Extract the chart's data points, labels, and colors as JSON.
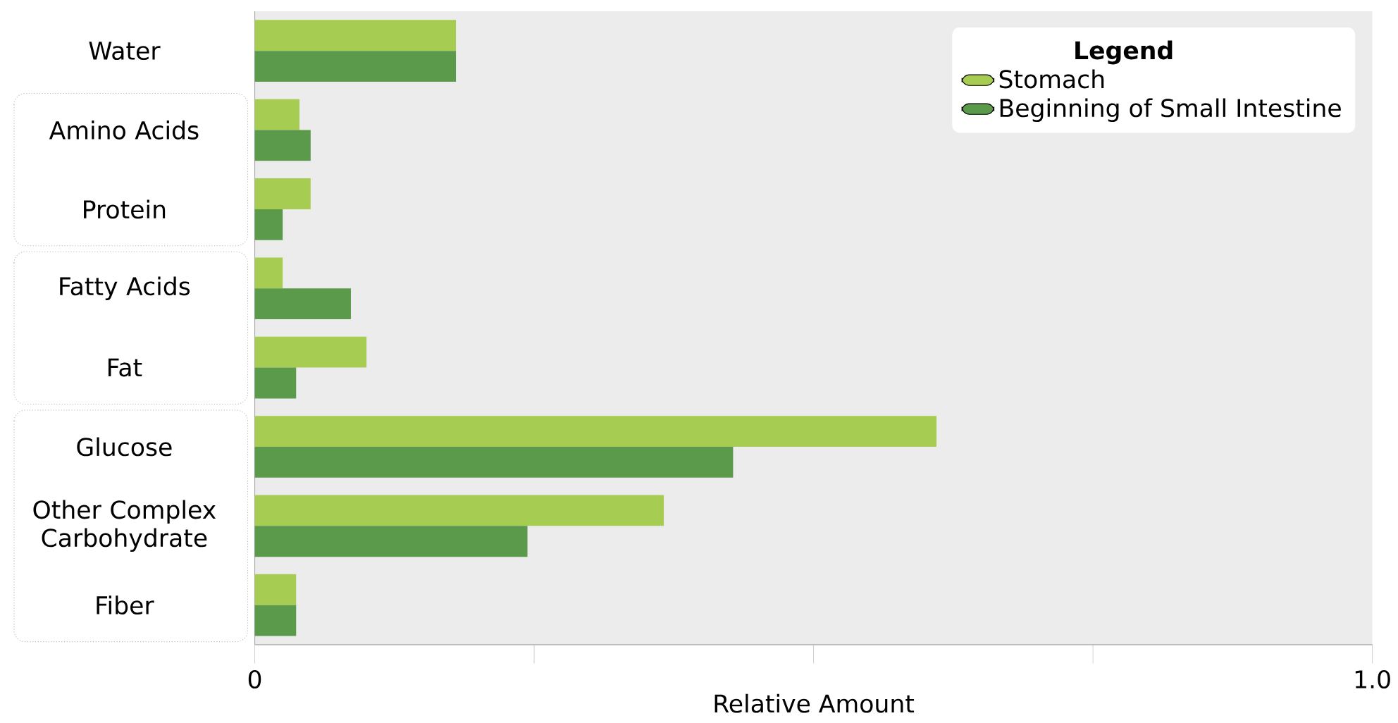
{
  "chart_data": {
    "type": "bar",
    "orientation": "horizontal",
    "xlabel": "Relative Amount",
    "legend_title": "Legend",
    "legend": "top right",
    "categories": [
      "Water",
      "Amino Acids",
      "Protein",
      "Fatty Acids",
      "Fat",
      "Glucose",
      "Other Complex Carbohydrate",
      "Fiber"
    ],
    "series": [
      {
        "name": "Stomach",
        "color": "#a6cc52",
        "values": [
          0.18,
          0.04,
          0.05,
          0.025,
          0.1,
          0.61,
          0.366,
          0.037
        ]
      },
      {
        "name": "Beginning of Small Intestine",
        "color": "#5b9a4b",
        "values": [
          0.18,
          0.05,
          0.025,
          0.086,
          0.037,
          0.428,
          0.244,
          0.037
        ]
      }
    ],
    "xlim": [
      0,
      1
    ],
    "xticks": [
      0,
      {
        "value": 0.25,
        "label": null
      },
      {
        "value": 0.5,
        "label": null
      },
      {
        "value": 0.75,
        "label": null
      },
      {
        "value": 1,
        "label": "1.0"
      }
    ]
  }
}
